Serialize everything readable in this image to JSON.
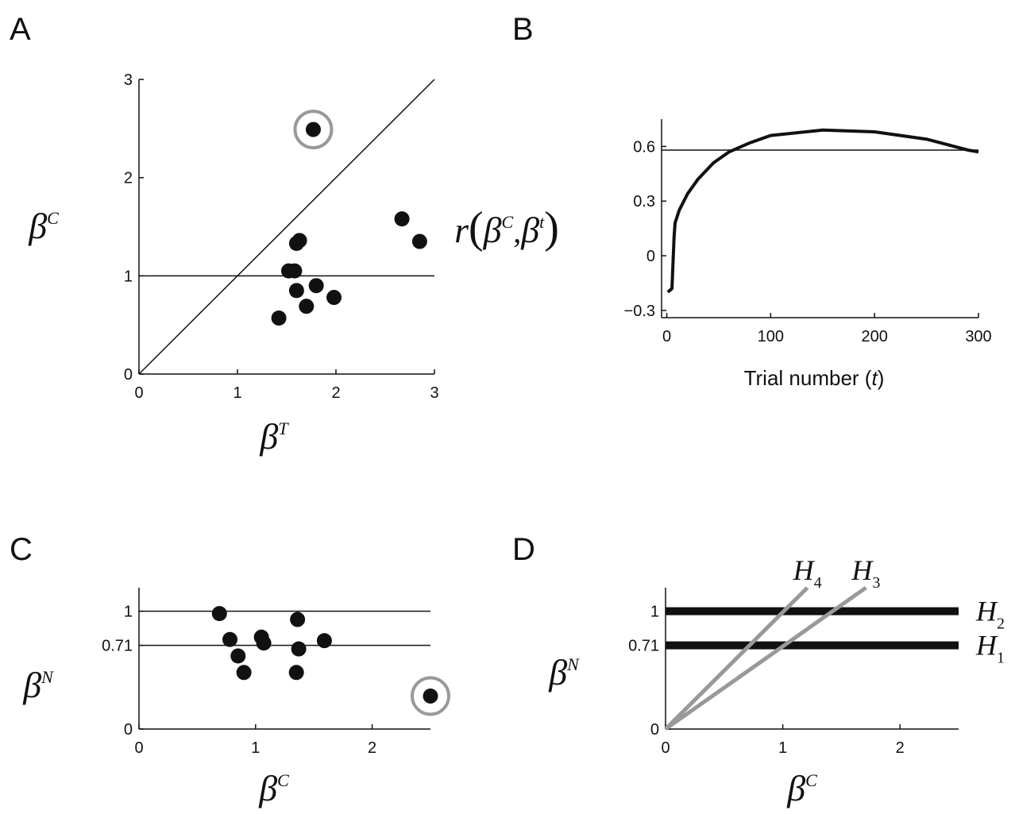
{
  "chart_data": [
    {
      "type": "scatter",
      "panel": "A",
      "x_label": [
        {
          "text": "β",
          "style": "math"
        },
        {
          "text": "T",
          "style": "sup"
        }
      ],
      "y_label": [
        {
          "text": "β",
          "style": "math"
        },
        {
          "text": "C",
          "style": "sup"
        }
      ],
      "xlim": [
        0,
        3
      ],
      "ylim": [
        0,
        3
      ],
      "xticks": [
        0,
        1,
        2,
        3
      ],
      "yticks": [
        0,
        1,
        2,
        3
      ],
      "series": [
        {
          "type": "line",
          "color": "#111111",
          "x": [
            0,
            3
          ],
          "values": [
            0,
            3
          ]
        },
        {
          "type": "line",
          "color": "#111111",
          "x": [
            0,
            3
          ],
          "values": [
            1,
            1
          ]
        },
        {
          "color": "#111111",
          "circled": 0,
          "x": [
            1.77,
            2.67,
            2.85,
            1.6,
            1.63,
            1.52,
            1.58,
            1.6,
            1.8,
            1.98,
            1.7,
            1.42
          ],
          "values": [
            2.49,
            1.58,
            1.35,
            1.33,
            1.36,
            1.05,
            1.05,
            0.85,
            0.9,
            0.78,
            0.69,
            0.57
          ]
        }
      ]
    },
    {
      "type": "line",
      "panel": "B",
      "x_label": [
        {
          "text": "Trial number (",
          "style": "text"
        },
        {
          "text": "t",
          "style": "text-italic"
        },
        {
          "text": ")",
          "style": "text"
        }
      ],
      "y_label": [
        {
          "text": "r",
          "style": "math"
        },
        {
          "text": "(",
          "style": "paren"
        },
        {
          "text": "β",
          "style": "math"
        },
        {
          "text": "C",
          "style": "sup"
        },
        {
          "text": ",",
          "style": "plain"
        },
        {
          "text": "β",
          "style": "math"
        },
        {
          "text": "t",
          "style": "sup"
        },
        {
          "text": ")",
          "style": "paren"
        }
      ],
      "xlim": [
        -5,
        300
      ],
      "ylim": [
        -0.34,
        0.75
      ],
      "xticks": [
        0,
        100,
        200,
        300
      ],
      "yticks": [
        {
          "value": -0.3,
          "label": "−0.3"
        },
        0,
        0.3,
        0.6
      ],
      "series": [
        {
          "color": "#111111",
          "x": [
            1,
            5,
            7,
            8,
            12,
            20,
            30,
            45,
            60,
            80,
            100,
            150,
            200,
            250,
            290,
            300
          ],
          "values": [
            -0.2,
            -0.18,
            0.1,
            0.18,
            0.25,
            0.34,
            0.42,
            0.51,
            0.57,
            0.62,
            0.66,
            0.69,
            0.68,
            0.64,
            0.58,
            0.57
          ]
        },
        {
          "color": "#111111",
          "x": [
            -5,
            300
          ],
          "values": [
            0.58,
            0.58
          ]
        }
      ]
    },
    {
      "type": "scatter",
      "panel": "C",
      "x_label": [
        {
          "text": "β",
          "style": "math"
        },
        {
          "text": "C",
          "style": "sup"
        }
      ],
      "y_label": [
        {
          "text": "β",
          "style": "math"
        },
        {
          "text": "N",
          "style": "sup"
        }
      ],
      "xlim": [
        0,
        2.5
      ],
      "ylim": [
        0,
        1.2
      ],
      "xticks": [
        0,
        1,
        2
      ],
      "yticks": [
        0,
        0.71,
        1
      ],
      "series": [
        {
          "type": "line",
          "color": "#111111",
          "x": [
            0,
            2.5
          ],
          "values": [
            1,
            1
          ]
        },
        {
          "type": "line",
          "color": "#111111",
          "x": [
            0,
            2.5
          ],
          "values": [
            0.71,
            0.71
          ]
        },
        {
          "color": "#111111",
          "circled": 10,
          "x": [
            0.69,
            0.78,
            0.85,
            0.9,
            1.05,
            1.07,
            1.36,
            1.37,
            1.35,
            1.59,
            2.5
          ],
          "values": [
            0.98,
            0.76,
            0.62,
            0.48,
            0.78,
            0.73,
            0.93,
            0.68,
            0.48,
            0.75,
            0.28
          ]
        }
      ]
    },
    {
      "type": "line",
      "panel": "D",
      "x_label": [
        {
          "text": "β",
          "style": "math"
        },
        {
          "text": "C",
          "style": "sup"
        }
      ],
      "y_label": [
        {
          "text": "β",
          "style": "math"
        },
        {
          "text": "N",
          "style": "sup"
        }
      ],
      "xlim": [
        0,
        2.5
      ],
      "ylim": [
        0,
        1.2
      ],
      "xticks": [
        0,
        1,
        2
      ],
      "yticks": [
        0,
        0.71,
        1
      ],
      "series": [
        {
          "name": "H",
          "subscript": "2",
          "color": "#111111",
          "x": [
            0,
            2.5
          ],
          "values": [
            1,
            1
          ]
        },
        {
          "name": "H",
          "subscript": "1",
          "color": "#111111",
          "x": [
            0,
            2.5
          ],
          "values": [
            0.71,
            0.71
          ]
        },
        {
          "name": "H",
          "subscript": "4",
          "color": "#999999",
          "x": [
            0,
            1.21
          ],
          "values": [
            0,
            1.2
          ]
        },
        {
          "name": "H",
          "subscript": "3",
          "color": "#999999",
          "x": [
            0,
            1.71
          ],
          "values": [
            0,
            1.2
          ]
        }
      ]
    }
  ]
}
